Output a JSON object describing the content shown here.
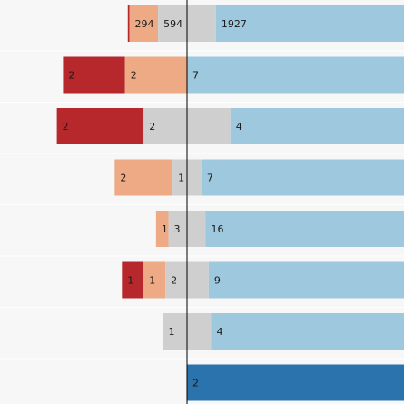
{
  "chart_data": {
    "type": "bar",
    "subtype": "diverging-stacked",
    "title": "",
    "xlabel": "",
    "ylabel": "",
    "grid": false,
    "legend": "none",
    "row_background": "#f7f7f7",
    "axis_color": "#000000",
    "segments": [
      {
        "key": "strong_neg",
        "side": "left",
        "color": "#b7282d"
      },
      {
        "key": "mild_neg",
        "side": "left",
        "color": "#eeaa85"
      },
      {
        "key": "neutral",
        "side": "split",
        "color": "#cfcfcf"
      },
      {
        "key": "mild_pos",
        "side": "right",
        "color": "#9ec8de"
      },
      {
        "key": "strong_pos",
        "side": "right",
        "color": "#2a73ad"
      }
    ],
    "rows": [
      {
        "strong_neg": 16,
        "mild_neg": 294,
        "neutral": 594,
        "mild_pos": 1927,
        "strong_pos": 0,
        "labels": {
          "mild_neg": "294",
          "neutral": "594",
          "mild_pos": "1927"
        }
      },
      {
        "strong_neg": 2,
        "mild_neg": 2,
        "neutral": 0,
        "mild_pos": 7,
        "strong_pos": 0,
        "labels": {
          "strong_neg": "2",
          "mild_neg": "2",
          "mild_pos": "7"
        }
      },
      {
        "strong_neg": 2,
        "mild_neg": 0,
        "neutral": 2,
        "mild_pos": 4,
        "strong_pos": 0,
        "labels": {
          "strong_neg": "2",
          "neutral": "2",
          "mild_pos": "4"
        }
      },
      {
        "strong_neg": 0,
        "mild_neg": 2,
        "neutral": 1,
        "mild_pos": 7,
        "strong_pos": 0,
        "labels": {
          "mild_neg": "2",
          "neutral": "1",
          "mild_pos": "7"
        }
      },
      {
        "strong_neg": 0,
        "mild_neg": 1,
        "neutral": 3,
        "mild_pos": 16,
        "strong_pos": 0,
        "labels": {
          "mild_neg": "1",
          "neutral": "3",
          "mild_pos": "16"
        }
      },
      {
        "strong_neg": 1,
        "mild_neg": 1,
        "neutral": 2,
        "mild_pos": 9,
        "strong_pos": 0,
        "labels": {
          "strong_neg": "1",
          "mild_neg": "1",
          "neutral": "2",
          "mild_pos": "9"
        }
      },
      {
        "strong_neg": 0,
        "mild_neg": 0,
        "neutral": 1,
        "mild_pos": 4,
        "strong_pos": 0,
        "labels": {
          "neutral": "1",
          "mild_pos": "4"
        }
      },
      {
        "strong_neg": 0,
        "mild_neg": 0,
        "neutral": 0,
        "mild_pos": 0,
        "strong_pos": 2,
        "labels": {
          "strong_pos": "2"
        }
      }
    ]
  }
}
